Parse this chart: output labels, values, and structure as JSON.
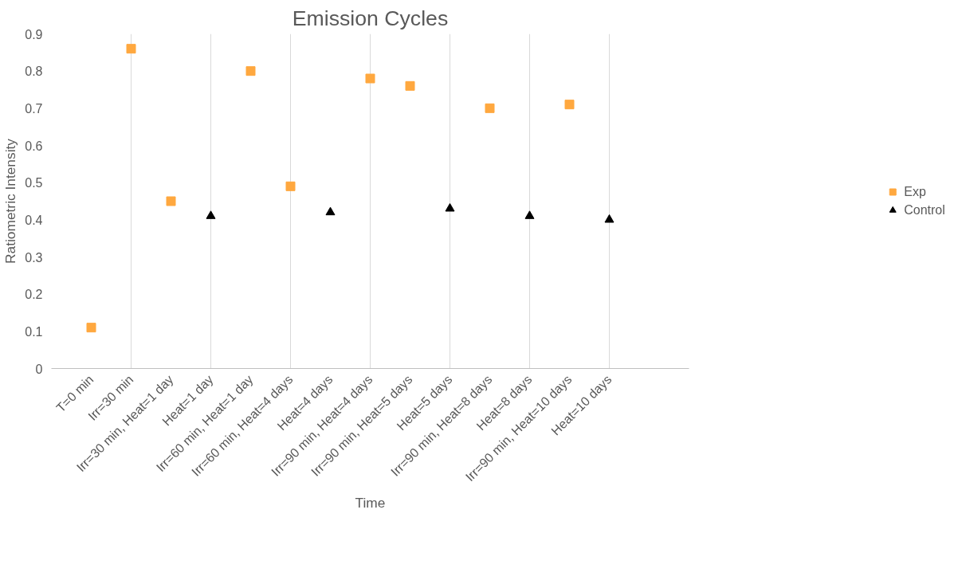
{
  "chart_data": {
    "type": "scatter",
    "title": "Emission Cycles",
    "xlabel": "Time",
    "ylabel": "Ratiometric Intensity",
    "categories": [
      "T=0 min",
      "Irr=30 min",
      "Irr=30 min, Heat=1 day",
      "Heat=1 day",
      "Irr=60 min, Heat=1 day",
      "Irr=60 min, Heat=4 days",
      "Heat=4 days",
      "Irr=90 min, Heat=4 days",
      "Irr=90 min, Heat=5 days",
      "Heat=5 days",
      "Irr=90 min, Heat=8 days",
      "Heat=8 days",
      "Irr=90 min, Heat=10 days",
      "Heat=10 days"
    ],
    "series": [
      {
        "name": "Exp",
        "color": "#ffa83f",
        "marker": "square",
        "values": [
          0.11,
          0.86,
          0.45,
          null,
          0.8,
          0.49,
          null,
          0.78,
          0.76,
          null,
          0.7,
          null,
          0.71,
          null
        ]
      },
      {
        "name": "Control",
        "color": "#000000",
        "marker": "triangle",
        "values": [
          null,
          null,
          null,
          0.41,
          null,
          null,
          0.42,
          null,
          null,
          0.43,
          null,
          0.41,
          null,
          0.4
        ]
      }
    ],
    "ylim": [
      0,
      0.9
    ],
    "yticks": [
      0,
      0.1,
      0.2,
      0.3,
      0.4,
      0.5,
      0.6,
      0.7,
      0.8,
      0.9
    ],
    "grid": "x",
    "legend": "right"
  }
}
